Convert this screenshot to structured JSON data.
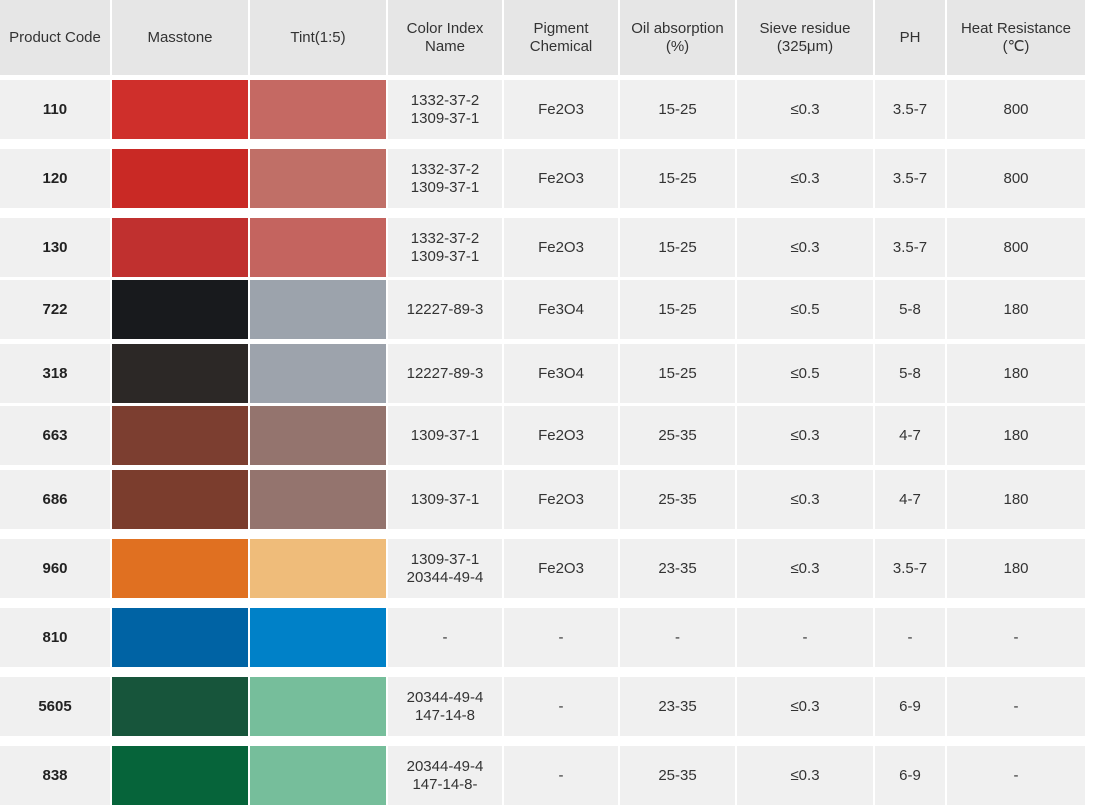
{
  "headers": [
    "Product Code",
    "Masstone",
    "Tint(1:5)",
    "Color Index\nName",
    "Pigment\nChemical",
    "Oil absorption\n(%)",
    "Sieve residue\n(325μm)",
    "PH",
    "Heat Resistance\n(℃)"
  ],
  "rows": [
    {
      "code": "110",
      "masstone": "#cf2f2b",
      "tint": "#c56963",
      "ci": "1332-37-2\n1309-37-1",
      "chem": "Fe2O3",
      "oil": "15-25",
      "sieve": "≤0.3",
      "ph": "3.5-7",
      "heat": "800"
    },
    {
      "code": "120",
      "masstone": "#c92925",
      "tint": "#c06f67",
      "ci": "1332-37-2\n1309-37-1",
      "chem": "Fe2O3",
      "oil": "15-25",
      "sieve": "≤0.3",
      "ph": "3.5-7",
      "heat": "800"
    },
    {
      "code": "130",
      "masstone": "#c0302f",
      "tint": "#c4645f",
      "ci": "1332-37-2\n1309-37-1",
      "chem": "Fe2O3",
      "oil": "15-25",
      "sieve": "≤0.3",
      "ph": "3.5-7",
      "heat": "800"
    },
    {
      "code": "722",
      "masstone": "#181a1d",
      "tint": "#9ca3ac",
      "ci": "12227-89-3",
      "chem": "Fe3O4",
      "oil": "15-25",
      "sieve": "≤0.5",
      "ph": "5-8",
      "heat": "180"
    },
    {
      "code": "318",
      "masstone": "#2c2826",
      "tint": "#9da3ac",
      "ci": "12227-89-3",
      "chem": "Fe3O4",
      "oil": "15-25",
      "sieve": "≤0.5",
      "ph": "5-8",
      "heat": "180"
    },
    {
      "code": "663",
      "masstone": "#7c3e30",
      "tint": "#94746e",
      "ci": "1309-37-1",
      "chem": "Fe2O3",
      "oil": "25-35",
      "sieve": "≤0.3",
      "ph": "4-7",
      "heat": "180"
    },
    {
      "code": "686",
      "masstone": "#7b3d2d",
      "tint": "#94746e",
      "ci": "1309-37-1",
      "chem": "Fe2O3",
      "oil": "25-35",
      "sieve": "≤0.3",
      "ph": "4-7",
      "heat": "180"
    },
    {
      "code": "960",
      "masstone": "#e07021",
      "tint": "#efbc7a",
      "ci": "1309-37-1\n20344-49-4",
      "chem": "Fe2O3",
      "oil": "23-35",
      "sieve": "≤0.3",
      "ph": "3.5-7",
      "heat": "180"
    },
    {
      "code": "810",
      "masstone": "#0063a4",
      "tint": "#0081c8",
      "ci": "-",
      "chem": "-",
      "oil": "-",
      "sieve": "-",
      "ph": "-",
      "heat": "-"
    },
    {
      "code": "5605",
      "masstone": "#17553b",
      "tint": "#76be9b",
      "ci": "20344-49-4\n147-14-8",
      "chem": "-",
      "oil": "23-35",
      "sieve": "≤0.3",
      "ph": "6-9",
      "heat": "-"
    },
    {
      "code": "838",
      "masstone": "#06643a",
      "tint": "#76be9b",
      "ci": "20344-49-4\n147-14-8-",
      "chem": "-",
      "oil": "25-35",
      "sieve": "≤0.3",
      "ph": "6-9",
      "heat": "-"
    }
  ]
}
